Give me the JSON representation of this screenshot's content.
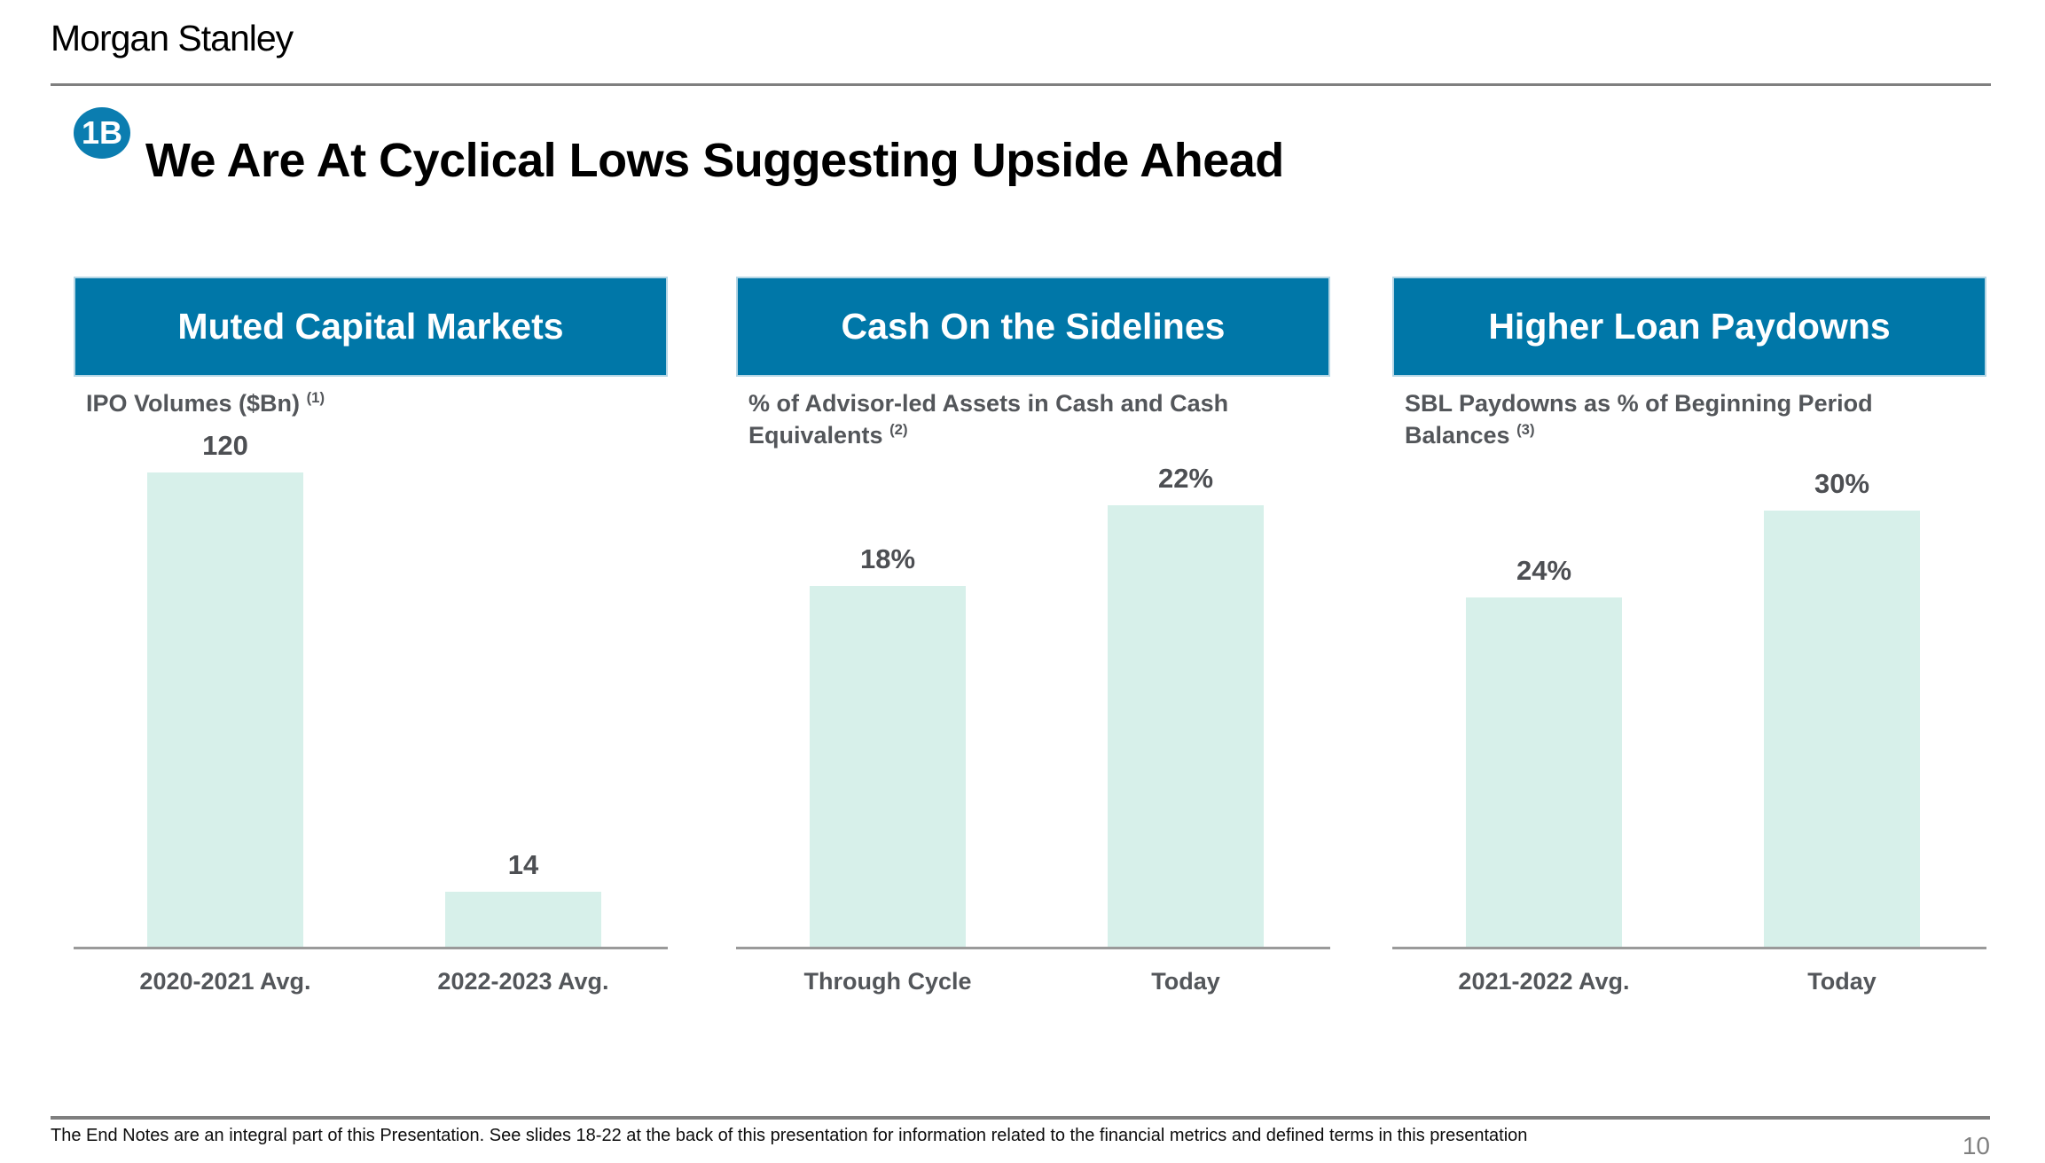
{
  "slide": {
    "logo": "Morgan Stanley",
    "badge": "1B",
    "title": "We Are At Cyclical Lows Suggesting Upside Ahead",
    "footer_note": "The End Notes are an integral part of this Presentation. See slides 18-22 at the back of this presentation for information related to the financial metrics and defined terms in this presentation",
    "page_number": "10"
  },
  "chart_data": [
    {
      "type": "bar",
      "title": "Muted Capital Markets",
      "subtitle": "IPO Volumes ($Bn)",
      "footnote_ref": "(1)",
      "categories": [
        "2020-2021 Avg.",
        "2022-2023 Avg."
      ],
      "values": [
        120,
        14
      ],
      "data_labels": [
        "120",
        "14"
      ],
      "ylim": [
        0,
        120
      ],
      "bar_color": "#d7f0ea",
      "grid": false,
      "legend": false
    },
    {
      "type": "bar",
      "title": "Cash On the Sidelines",
      "subtitle": "% of Advisor-led Assets in Cash and Cash Equivalents",
      "footnote_ref": "(2)",
      "categories": [
        "Through Cycle",
        "Today"
      ],
      "values": [
        18,
        22
      ],
      "data_labels": [
        "18%",
        "22%"
      ],
      "ylim": [
        0,
        22
      ],
      "bar_color": "#d7f0ea",
      "grid": false,
      "legend": false
    },
    {
      "type": "bar",
      "title": "Higher Loan Paydowns",
      "subtitle": "SBL Paydowns as % of Beginning Period Balances",
      "footnote_ref": "(3)",
      "categories": [
        "2021-2022 Avg.",
        "Today"
      ],
      "values": [
        24,
        30
      ],
      "data_labels": [
        "24%",
        "30%"
      ],
      "ylim": [
        0,
        30
      ],
      "bar_color": "#d7f0ea",
      "grid": false,
      "legend": false
    }
  ],
  "colors": {
    "header_blue": "#0077a8",
    "badge_blue": "#0b7db0",
    "bar_mint": "#d7f0ea",
    "axis_gray": "#9a9a9a",
    "text_gray": "#53565a"
  }
}
